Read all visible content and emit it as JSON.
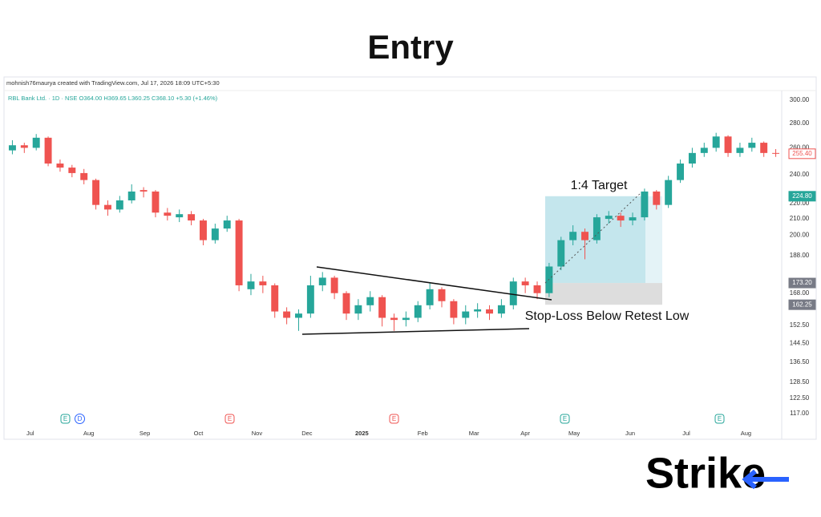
{
  "chart_data": {
    "type": "candlestick",
    "title": "Entry",
    "header": "mohnish76maurya created with TradingView.com, Jul 17, 2026 18:09 UTC+5:30",
    "legend_text": "RBL Bank Ltd. · 1D · NSE  O364.00 H369.65 L360.25 C368.10 +5.30 (+1.46%)",
    "annotations": [
      "1:4 Target",
      "Stop-Loss Below Retest Low"
    ],
    "event_markers": [
      "E",
      "D",
      "E",
      "E",
      "E",
      "E"
    ],
    "logo": "Strike",
    "log_scale": true,
    "grid": false,
    "up_color": "#26a69a",
    "down_color": "#ef5350",
    "x": [
      0,
      1,
      2,
      3,
      4,
      5,
      6,
      7,
      8,
      9,
      10,
      11,
      12,
      13,
      14,
      15,
      16,
      17,
      18,
      19,
      20,
      21,
      22,
      23,
      24,
      25,
      26,
      27,
      28,
      29,
      30,
      31,
      32,
      33,
      34,
      35,
      36,
      37,
      38,
      39,
      40,
      41,
      42,
      43,
      44,
      45,
      46,
      47,
      48,
      49,
      50,
      51,
      52,
      53,
      54,
      55,
      56,
      57,
      58,
      59,
      60,
      61,
      62,
      63,
      64
    ],
    "open": [
      258,
      262,
      260,
      268,
      248,
      245,
      241,
      236,
      219,
      216,
      222,
      229,
      228,
      214,
      211,
      213,
      209,
      197,
      204,
      209,
      170,
      174,
      172,
      159,
      156,
      158,
      172,
      176,
      168,
      158,
      162,
      166,
      156,
      155,
      156,
      162,
      170,
      164,
      156,
      159,
      160,
      158,
      162,
      174,
      172,
      168,
      182,
      197,
      202,
      197,
      210,
      212,
      209,
      211,
      228,
      219,
      236,
      248,
      256,
      260,
      269,
      256,
      260,
      264,
      256
    ],
    "high": [
      266,
      264,
      271,
      269,
      251,
      247,
      244,
      237,
      222,
      225,
      233,
      231,
      229,
      217,
      216,
      215,
      210,
      207,
      212,
      210,
      178,
      177,
      173,
      161,
      160,
      177,
      179,
      177,
      169,
      165,
      169,
      167,
      158,
      159,
      164,
      173,
      171,
      165,
      162,
      163,
      162,
      165,
      176,
      176,
      174,
      184,
      199,
      206,
      204,
      213,
      215,
      214,
      214,
      230,
      229,
      239,
      251,
      260,
      264,
      272,
      270,
      264,
      268,
      265,
      259
    ],
    "low": [
      255,
      256,
      258,
      246,
      242,
      238,
      233,
      216,
      212,
      214,
      220,
      224,
      211,
      209,
      208,
      206,
      194,
      195,
      202,
      169,
      167,
      168,
      156,
      153,
      150,
      156,
      169,
      165,
      155,
      155,
      159,
      152,
      150,
      152,
      154,
      160,
      161,
      153,
      153,
      156,
      155,
      156,
      160,
      168,
      165,
      166,
      180,
      194,
      186,
      195,
      207,
      205,
      206,
      209,
      216,
      217,
      234,
      245,
      253,
      257,
      253,
      253,
      257,
      253,
      253
    ],
    "close": [
      262,
      260,
      268,
      248,
      245,
      241,
      236,
      219,
      216,
      222,
      228,
      228,
      214,
      212,
      213,
      209,
      197,
      204,
      209,
      172,
      174,
      172,
      159,
      156,
      158,
      172,
      176,
      168,
      158,
      162,
      166,
      156,
      155,
      156,
      162,
      170,
      164,
      156,
      159,
      160,
      158,
      162,
      174,
      172,
      168,
      182,
      197,
      202,
      197,
      211,
      212,
      209,
      211,
      228,
      219,
      236,
      248,
      256,
      260,
      269,
      256,
      260,
      264,
      256,
      255.4
    ],
    "xlim": [
      -0.5,
      64.5
    ],
    "xticks": [
      {
        "value": 1.5,
        "label": "Jul"
      },
      {
        "value": 6.4,
        "label": "Aug"
      },
      {
        "value": 11.1,
        "label": "Sep"
      },
      {
        "value": 15.6,
        "label": "Oct"
      },
      {
        "value": 20.5,
        "label": "Nov"
      },
      {
        "value": 24.7,
        "label": "Dec"
      },
      {
        "value": 29.3,
        "label": "2025"
      },
      {
        "value": 34.4,
        "label": "Feb"
      },
      {
        "value": 38.7,
        "label": "Mar"
      },
      {
        "value": 43.0,
        "label": "Apr"
      },
      {
        "value": 47.1,
        "label": "May"
      },
      {
        "value": 51.8,
        "label": "Jun"
      },
      {
        "value": 56.5,
        "label": "Jul"
      },
      {
        "value": 61.5,
        "label": "Aug"
      }
    ],
    "ylim": [
      108.3,
      308.8
    ],
    "yticks": [
      {
        "value": 300,
        "label": "300.00"
      },
      {
        "value": 280,
        "label": "280.00"
      },
      {
        "value": 260,
        "label": "260.00"
      },
      {
        "value": 240,
        "label": "240.00"
      },
      {
        "value": 220,
        "label": "220.00"
      },
      {
        "value": 210,
        "label": "210.00"
      },
      {
        "value": 200,
        "label": "200.00"
      },
      {
        "value": 188,
        "label": "188.00"
      },
      {
        "value": 168,
        "label": "168.00"
      },
      {
        "value": 152.5,
        "label": "152.50"
      },
      {
        "value": 144.5,
        "label": "144.50"
      },
      {
        "value": 136.5,
        "label": "136.50"
      },
      {
        "value": 128.5,
        "label": "128.50"
      },
      {
        "value": 122.5,
        "label": "122.50"
      },
      {
        "value": 117,
        "label": "117.00"
      }
    ],
    "price_tags": [
      {
        "value": 255.4,
        "label": "255.40",
        "color": "#ef5350"
      },
      {
        "value": 224.8,
        "label": "224.80",
        "color": "#26a69a"
      },
      {
        "value": 173.2,
        "label": "173.20",
        "color": "#787b86"
      },
      {
        "value": 162.25,
        "label": "162.25",
        "color": "#787b86"
      }
    ],
    "position": {
      "entry": 173.2,
      "target": 224.8,
      "stop": 162.25
    }
  }
}
